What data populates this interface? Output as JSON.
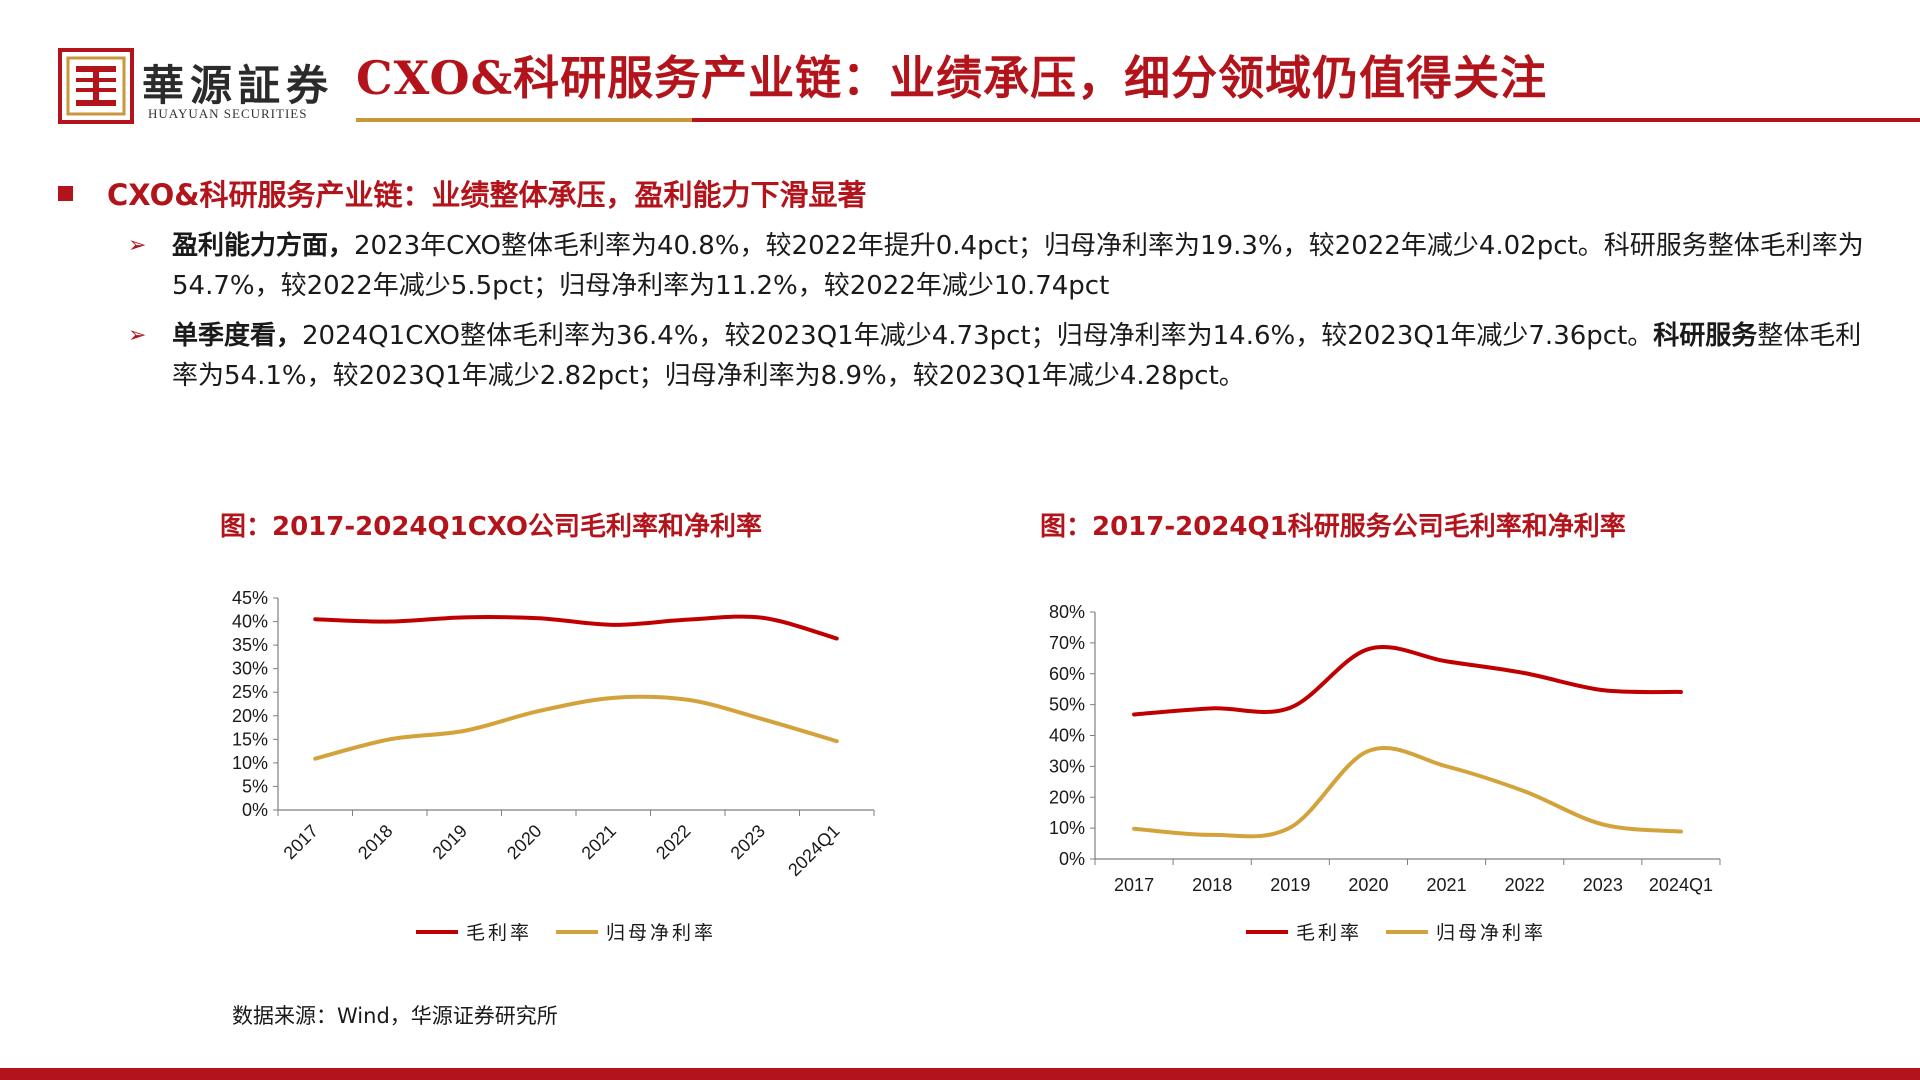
{
  "brand": {
    "name_cn": "華源証券",
    "name_en": "HUAYUAN SECURITIES"
  },
  "title": "CXO&科研服务产业链：业绩承压，细分领域仍值得关注",
  "section": "CXO&科研服务产业链：业绩整体承压，盈利能力下滑显著",
  "bullets": {
    "b1": {
      "lead": "盈利能力方面，",
      "text": "2023年CXO整体毛利率为40.8%，较2022年提升0.4pct；归母净利率为19.3%，较2022年减少4.02pct。科研服务整体毛利率为54.7%，较2022年减少5.5pct；归母净利率为11.2%，较2022年减少10.74pct"
    },
    "b2": {
      "lead": "单季度看，",
      "text": "2024Q1CXO整体毛利率为36.4%，较2023Q1年减少4.73pct；归母净利率为14.6%，较2023Q1年减少7.36pct。",
      "bold2": "科研服务",
      "text2": "整体毛利率为54.1%，较2023Q1年减少2.82pct；归母净利率为8.9%，较2023Q1年减少4.28pct。"
    }
  },
  "source": "数据来源：Wind，华源证券研究所",
  "colors": {
    "red": "#c00000",
    "gold": "#d4a23a",
    "accent": "#b3141b"
  },
  "chart_data": [
    {
      "type": "line",
      "title": "图：2017-2024Q1CXO公司毛利率和净利率",
      "categories": [
        "2017",
        "2018",
        "2019",
        "2020",
        "2021",
        "2022",
        "2023",
        "2024Q1"
      ],
      "series": [
        {
          "name": "毛利率",
          "values": [
            40.5,
            40.0,
            40.9,
            40.7,
            39.3,
            40.4,
            40.8,
            36.4
          ]
        },
        {
          "name": "归母净利率",
          "values": [
            10.9,
            15.0,
            16.8,
            21.0,
            23.8,
            23.4,
            19.3,
            14.6
          ]
        }
      ],
      "yticks": [
        "0%",
        "5%",
        "10%",
        "15%",
        "20%",
        "25%",
        "30%",
        "35%",
        "40%",
        "45%"
      ],
      "ylim": [
        0,
        45
      ],
      "xlabel": "",
      "ylabel": "",
      "xrotated": true,
      "legend": "bottom"
    },
    {
      "type": "line",
      "title": "图：2017-2024Q1科研服务公司毛利率和净利率",
      "categories": [
        "2017",
        "2018",
        "2019",
        "2020",
        "2021",
        "2022",
        "2023",
        "2024Q1"
      ],
      "series": [
        {
          "name": "毛利率",
          "values": [
            46.8,
            48.8,
            49.0,
            68.0,
            64.0,
            60.2,
            54.7,
            54.1
          ]
        },
        {
          "name": "归母净利率",
          "values": [
            9.8,
            7.8,
            10.2,
            35.0,
            30.0,
            21.9,
            11.2,
            8.9
          ]
        }
      ],
      "yticks": [
        "0%",
        "10%",
        "20%",
        "30%",
        "40%",
        "50%",
        "60%",
        "70%",
        "80%"
      ],
      "ylim": [
        0,
        80
      ],
      "xlabel": "",
      "ylabel": "",
      "xrotated": false,
      "legend": "bottom"
    }
  ]
}
